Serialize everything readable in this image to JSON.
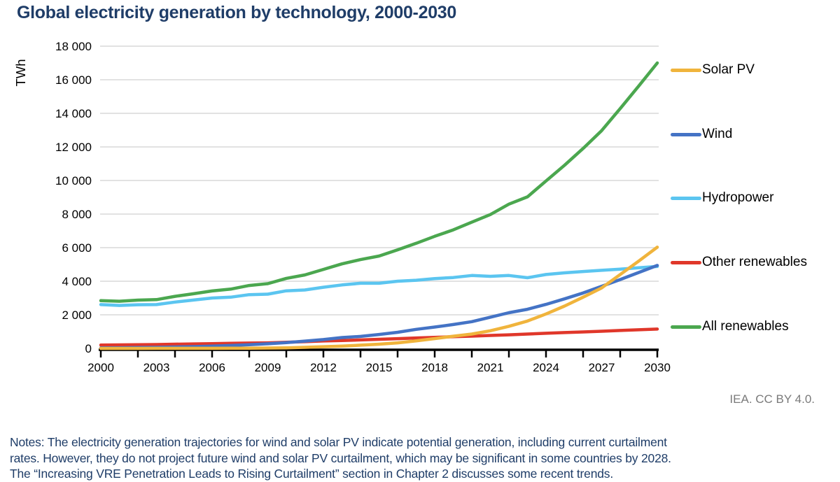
{
  "title": "Global electricity generation by technology, 2000-2030",
  "credit": "IEA. CC BY 4.0.",
  "notes_lines": [
    "Notes: The electricity generation trajectories for wind and solar PV indicate potential generation, including current curtailment",
    "rates. However, they do not project future wind and solar PV curtailment, which may be significant in some countries by 2028.",
    "The “Increasing VRE Penetration Leads to Rising Curtailment” section in Chapter 2 discusses some recent trends."
  ],
  "colors": {
    "title_text": "#1F3D68",
    "notes_text": "#1F3D68",
    "credit_text": "#7A7A7A",
    "gridline": "#D8D8D8",
    "axis": "#000000"
  },
  "chart_data": {
    "type": "line",
    "title": "Global electricity generation by technology, 2000-2030",
    "xlabel": "",
    "ylabel": "TWh",
    "xlim": [
      2000,
      2030
    ],
    "ylim": [
      0,
      18000
    ],
    "grid": "horizontal",
    "legend_position": "right",
    "x_tick_labels": [
      "2000",
      "2003",
      "2006",
      "2009",
      "2012",
      "2015",
      "2018",
      "2021",
      "2024",
      "2027",
      "2030"
    ],
    "y_ticks": [
      0,
      2000,
      4000,
      6000,
      8000,
      10000,
      12000,
      14000,
      16000,
      18000
    ],
    "y_tick_labels": [
      "0",
      "2 000",
      "4 000",
      "6 000",
      "8 000",
      "10 000",
      "12 000",
      "14 000",
      "16 000",
      "18 000"
    ],
    "x": [
      2000,
      2001,
      2002,
      2003,
      2004,
      2005,
      2006,
      2007,
      2008,
      2009,
      2010,
      2011,
      2012,
      2013,
      2014,
      2015,
      2016,
      2017,
      2018,
      2019,
      2020,
      2021,
      2022,
      2023,
      2024,
      2025,
      2026,
      2027,
      2028,
      2029,
      2030
    ],
    "series": [
      {
        "name": "Solar PV",
        "color": "#F0B43C",
        "z": 4,
        "values": [
          1,
          1,
          2,
          3,
          4,
          5,
          6,
          8,
          12,
          20,
          32,
          63,
          100,
          139,
          190,
          250,
          330,
          445,
          585,
          725,
          855,
          1050,
          1315,
          1630,
          2050,
          2520,
          3050,
          3600,
          4400,
          5200,
          6030
        ]
      },
      {
        "name": "Wind",
        "color": "#4473C5",
        "z": 3,
        "values": [
          31,
          38,
          52,
          63,
          85,
          104,
          133,
          170,
          220,
          276,
          342,
          434,
          523,
          645,
          712,
          830,
          960,
          1135,
          1270,
          1420,
          1590,
          1860,
          2125,
          2330,
          2620,
          2950,
          3300,
          3700,
          4100,
          4520,
          4940
        ]
      },
      {
        "name": "Hydropower",
        "color": "#5BC5F0",
        "z": 1,
        "values": [
          2610,
          2560,
          2600,
          2610,
          2760,
          2880,
          3000,
          3050,
          3200,
          3230,
          3430,
          3480,
          3640,
          3780,
          3880,
          3880,
          4000,
          4060,
          4160,
          4220,
          4340,
          4290,
          4340,
          4210,
          4400,
          4500,
          4580,
          4650,
          4720,
          4800,
          4880
        ]
      },
      {
        "name": "Other renewables",
        "color": "#E0372A",
        "z": 2,
        "values": [
          200,
          210,
          220,
          230,
          250,
          265,
          280,
          300,
          315,
          330,
          365,
          400,
          440,
          470,
          505,
          540,
          580,
          620,
          660,
          695,
          730,
          770,
          810,
          855,
          900,
          940,
          980,
          1020,
          1065,
          1110,
          1150
        ]
      },
      {
        "name": "All renewables",
        "color": "#4BA74F",
        "z": 5,
        "values": [
          2842,
          2809,
          2874,
          2906,
          3099,
          3254,
          3419,
          3528,
          3747,
          3856,
          4169,
          4377,
          4703,
          5034,
          5287,
          5500,
          5870,
          6260,
          6675,
          7060,
          7515,
          7970,
          8590,
          9025,
          9970,
          10910,
          11910,
          12970,
          14285,
          15630,
          17000
        ]
      }
    ]
  }
}
